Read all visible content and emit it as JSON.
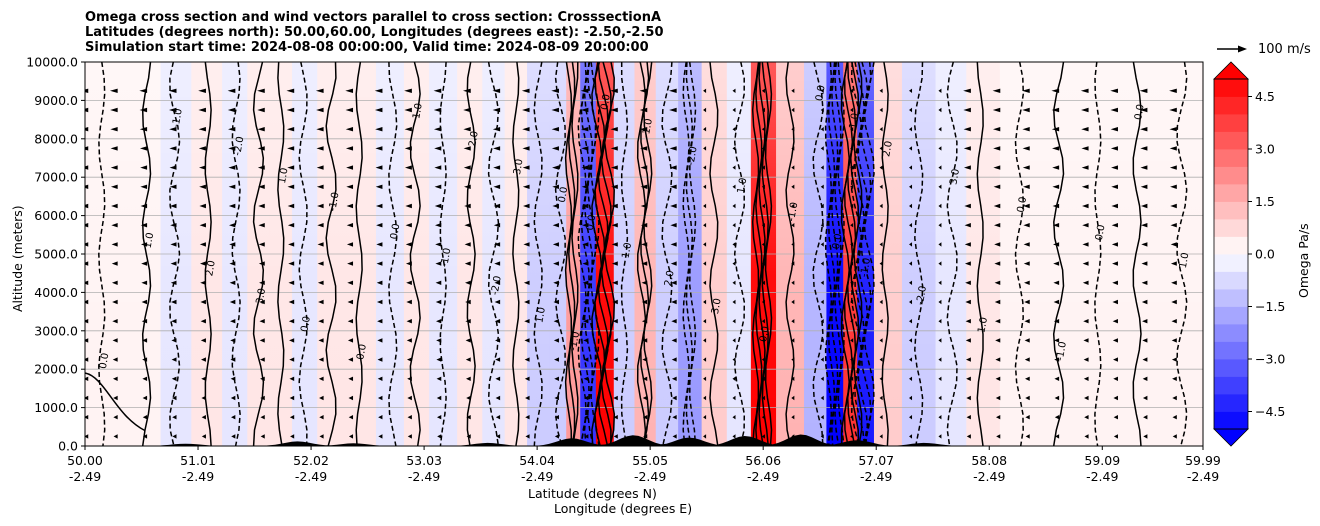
{
  "chart_data": {
    "type": "heatmap",
    "title_lines": [
      "Omega cross section and wind vectors parallel to cross section: CrosssectionA",
      "Latitudes (degrees north): 50.00,60.00, Longitudes (degrees east): -2.50,-2.50",
      "Simulation start time: 2024-08-08 00:00:00, Valid time: 2024-08-09 20:00:00"
    ],
    "xlabel_1": "Latitude (degrees N)",
    "xlabel_2": "Longitude (degrees E)",
    "ylabel": "Altitude (meters)",
    "x_tick_lat": [
      "50.00",
      "51.01",
      "52.02",
      "53.03",
      "54.04",
      "55.05",
      "56.06",
      "57.07",
      "58.08",
      "59.09",
      "59.99"
    ],
    "x_tick_lon": [
      "-2.49",
      "-2.49",
      "-2.49",
      "-2.49",
      "-2.49",
      "-2.49",
      "-2.49",
      "-2.49",
      "-2.49",
      "-2.49",
      "-2.49"
    ],
    "y_ticks": [
      "0.0",
      "1000.0",
      "2000.0",
      "3000.0",
      "4000.0",
      "5000.0",
      "6000.0",
      "7000.0",
      "8000.0",
      "9000.0",
      "10000.0"
    ],
    "xlim": [
      50.0,
      59.99
    ],
    "ylim": [
      0,
      10000
    ],
    "grid": "horizontal",
    "colorbar": {
      "label": "Omega Pa/s",
      "ticks": [
        "4.5",
        "3.0",
        "1.5",
        "0.0",
        "−1.5",
        "−3.0",
        "−4.5"
      ],
      "range": [
        -5.0,
        5.0
      ],
      "extend": "both",
      "colormap": "bwr",
      "neg_color": "#0000ff",
      "pos_color": "#ff0000"
    },
    "reference_vector_label": "100 m/s",
    "omega_columns": [
      {
        "lat": 50.15,
        "value": -0.2
      },
      {
        "lat": 50.55,
        "value": 0.1
      },
      {
        "lat": 50.8,
        "value": -0.3
      },
      {
        "lat": 51.1,
        "value": 0.3
      },
      {
        "lat": 51.35,
        "value": -0.4
      },
      {
        "lat": 51.55,
        "value": 0.5
      },
      {
        "lat": 51.75,
        "value": 0.6
      },
      {
        "lat": 51.95,
        "value": -0.5
      },
      {
        "lat": 52.2,
        "value": 0.7
      },
      {
        "lat": 52.45,
        "value": 0.4
      },
      {
        "lat": 52.75,
        "value": -0.6
      },
      {
        "lat": 52.95,
        "value": 0.6
      },
      {
        "lat": 53.2,
        "value": -0.5
      },
      {
        "lat": 53.45,
        "value": 0.6
      },
      {
        "lat": 53.65,
        "value": -0.3
      },
      {
        "lat": 53.85,
        "value": 0.5
      },
      {
        "lat": 54.05,
        "value": -1.2
      },
      {
        "lat": 54.25,
        "value": -0.8
      },
      {
        "lat": 54.35,
        "value": 2.0
      },
      {
        "lat": 54.5,
        "value": -4.2
      },
      {
        "lat": 54.63,
        "value": 5.0
      },
      {
        "lat": 54.82,
        "value": -1.0
      },
      {
        "lat": 55.0,
        "value": 1.6
      },
      {
        "lat": 55.2,
        "value": -1.2
      },
      {
        "lat": 55.4,
        "value": -2.2
      },
      {
        "lat": 55.62,
        "value": 1.2
      },
      {
        "lat": 55.85,
        "value": -0.6
      },
      {
        "lat": 56.05,
        "value": 5.0
      },
      {
        "lat": 56.3,
        "value": 1.5
      },
      {
        "lat": 56.55,
        "value": -1.4
      },
      {
        "lat": 56.7,
        "value": -5.0
      },
      {
        "lat": 56.85,
        "value": 3.8
      },
      {
        "lat": 56.95,
        "value": -4.6
      },
      {
        "lat": 57.15,
        "value": 1.2
      },
      {
        "lat": 57.45,
        "value": -0.9
      },
      {
        "lat": 57.75,
        "value": -0.6
      },
      {
        "lat": 58.0,
        "value": 0.3
      },
      {
        "lat": 58.35,
        "value": -0.2
      },
      {
        "lat": 58.7,
        "value": 0.1
      },
      {
        "lat": 59.05,
        "value": -0.2
      },
      {
        "lat": 59.4,
        "value": 0.2
      },
      {
        "lat": 59.8,
        "value": -0.1
      }
    ],
    "contour_labels": [
      "0.0",
      "1.0",
      "-1.0",
      "2.0",
      "-2.0",
      "3.0",
      "1.0",
      "0.0",
      "-1.0",
      "0.0"
    ],
    "terrain_peaks_m": [
      {
        "lat": 50.9,
        "height": 60
      },
      {
        "lat": 51.9,
        "height": 120
      },
      {
        "lat": 52.4,
        "height": 70
      },
      {
        "lat": 53.6,
        "height": 80
      },
      {
        "lat": 54.35,
        "height": 200
      },
      {
        "lat": 54.9,
        "height": 280
      },
      {
        "lat": 55.4,
        "height": 220
      },
      {
        "lat": 55.9,
        "height": 260
      },
      {
        "lat": 56.4,
        "height": 300
      },
      {
        "lat": 56.9,
        "height": 150
      },
      {
        "lat": 57.5,
        "height": 80
      }
    ]
  }
}
